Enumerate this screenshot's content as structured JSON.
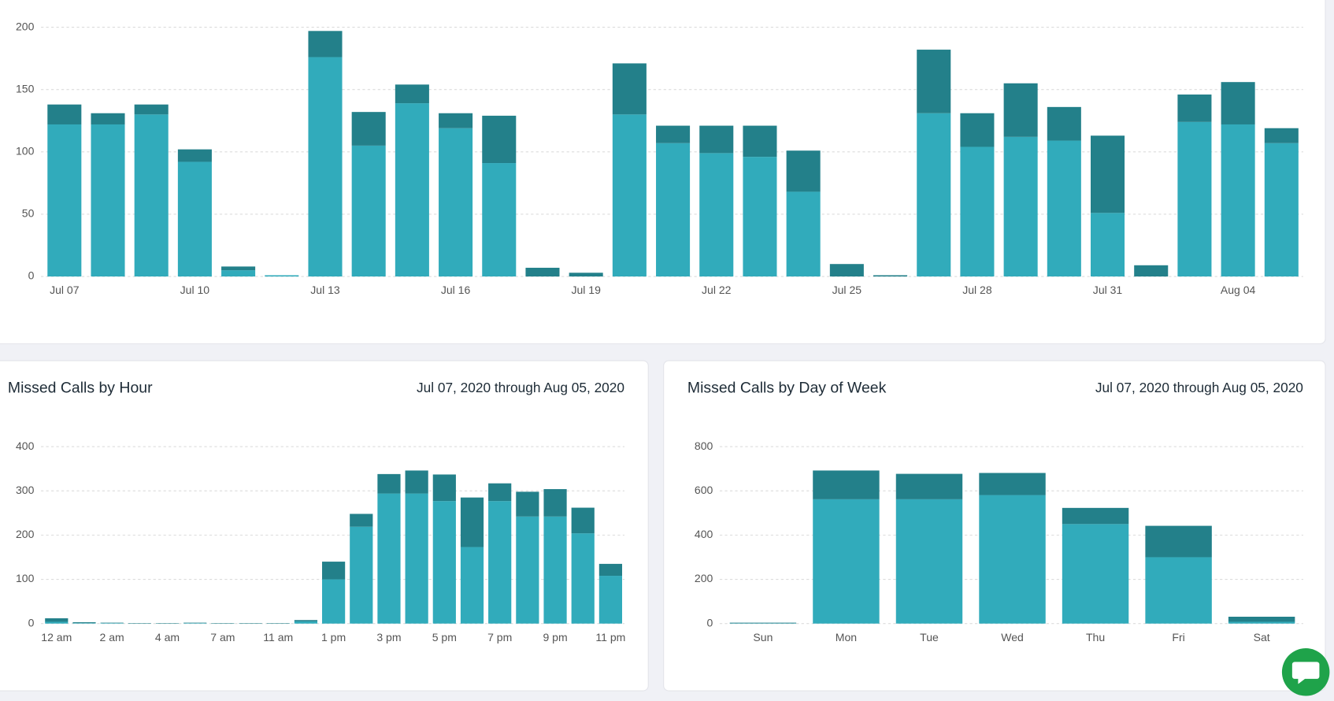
{
  "chart_data": [
    {
      "type": "bar",
      "stacked": true,
      "grid": true,
      "categories": [
        "Jul 07",
        null,
        null,
        "Jul 10",
        null,
        null,
        "Jul 13",
        null,
        null,
        "Jul 16",
        null,
        null,
        "Jul 19",
        null,
        null,
        "Jul 22",
        null,
        null,
        "Jul 25",
        null,
        null,
        "Jul 28",
        null,
        null,
        "Jul 31",
        null,
        null,
        "Aug 04",
        null
      ],
      "series": [
        {
          "color": "#31abbb",
          "values": [
            122,
            122,
            130,
            92,
            5,
            1,
            176,
            105,
            139,
            119,
            91,
            0,
            0,
            130,
            107,
            99,
            96,
            68,
            0,
            0,
            131,
            104,
            112,
            109,
            51,
            0,
            124,
            122,
            107
          ]
        },
        {
          "color": "#23808a",
          "values": [
            16,
            9,
            8,
            10,
            3,
            0,
            21,
            27,
            15,
            12,
            38,
            7,
            3,
            41,
            14,
            22,
            25,
            33,
            10,
            1,
            51,
            27,
            43,
            27,
            62,
            9,
            22,
            34,
            12
          ]
        }
      ],
      "ylim": [
        0,
        200
      ],
      "yticks": [
        0,
        50,
        100,
        150,
        200
      ]
    },
    {
      "type": "bar",
      "stacked": true,
      "grid": true,
      "title": "Missed Calls by Hour",
      "subtitle": "Jul 07, 2020 through Aug 05, 2020",
      "categories": [
        "12 am",
        null,
        "2 am",
        null,
        "4 am",
        null,
        "7 am",
        null,
        "11 am",
        null,
        "1 pm",
        null,
        "3 pm",
        null,
        "5 pm",
        null,
        "7 pm",
        null,
        "9 pm",
        null,
        "11 pm"
      ],
      "series": [
        {
          "color": "#31abbb",
          "values": [
            4,
            1,
            1,
            0,
            0,
            1,
            0,
            0,
            0,
            5,
            100,
            219,
            294,
            294,
            277,
            173,
            277,
            242,
            242,
            204,
            108
          ]
        },
        {
          "color": "#23808a",
          "values": [
            8,
            2,
            1,
            1,
            1,
            1,
            1,
            1,
            1,
            3,
            40,
            29,
            44,
            52,
            60,
            112,
            40,
            56,
            62,
            58,
            27
          ]
        }
      ],
      "ylim": [
        0,
        400
      ],
      "yticks": [
        0,
        100,
        200,
        300,
        400
      ]
    },
    {
      "type": "bar",
      "stacked": true,
      "grid": true,
      "title": "Missed Calls by Day of Week",
      "subtitle": "Jul 07, 2020 through Aug 05, 2020",
      "categories": [
        "Sun",
        "Mon",
        "Tue",
        "Wed",
        "Thu",
        "Fri",
        "Sat"
      ],
      "series": [
        {
          "color": "#31abbb",
          "values": [
            1,
            562,
            562,
            581,
            450,
            300,
            8
          ]
        },
        {
          "color": "#23808a",
          "values": [
            3,
            130,
            115,
            100,
            73,
            142,
            23
          ]
        }
      ],
      "ylim": [
        0,
        800
      ],
      "yticks": [
        0,
        200,
        400,
        600,
        800
      ]
    }
  ]
}
